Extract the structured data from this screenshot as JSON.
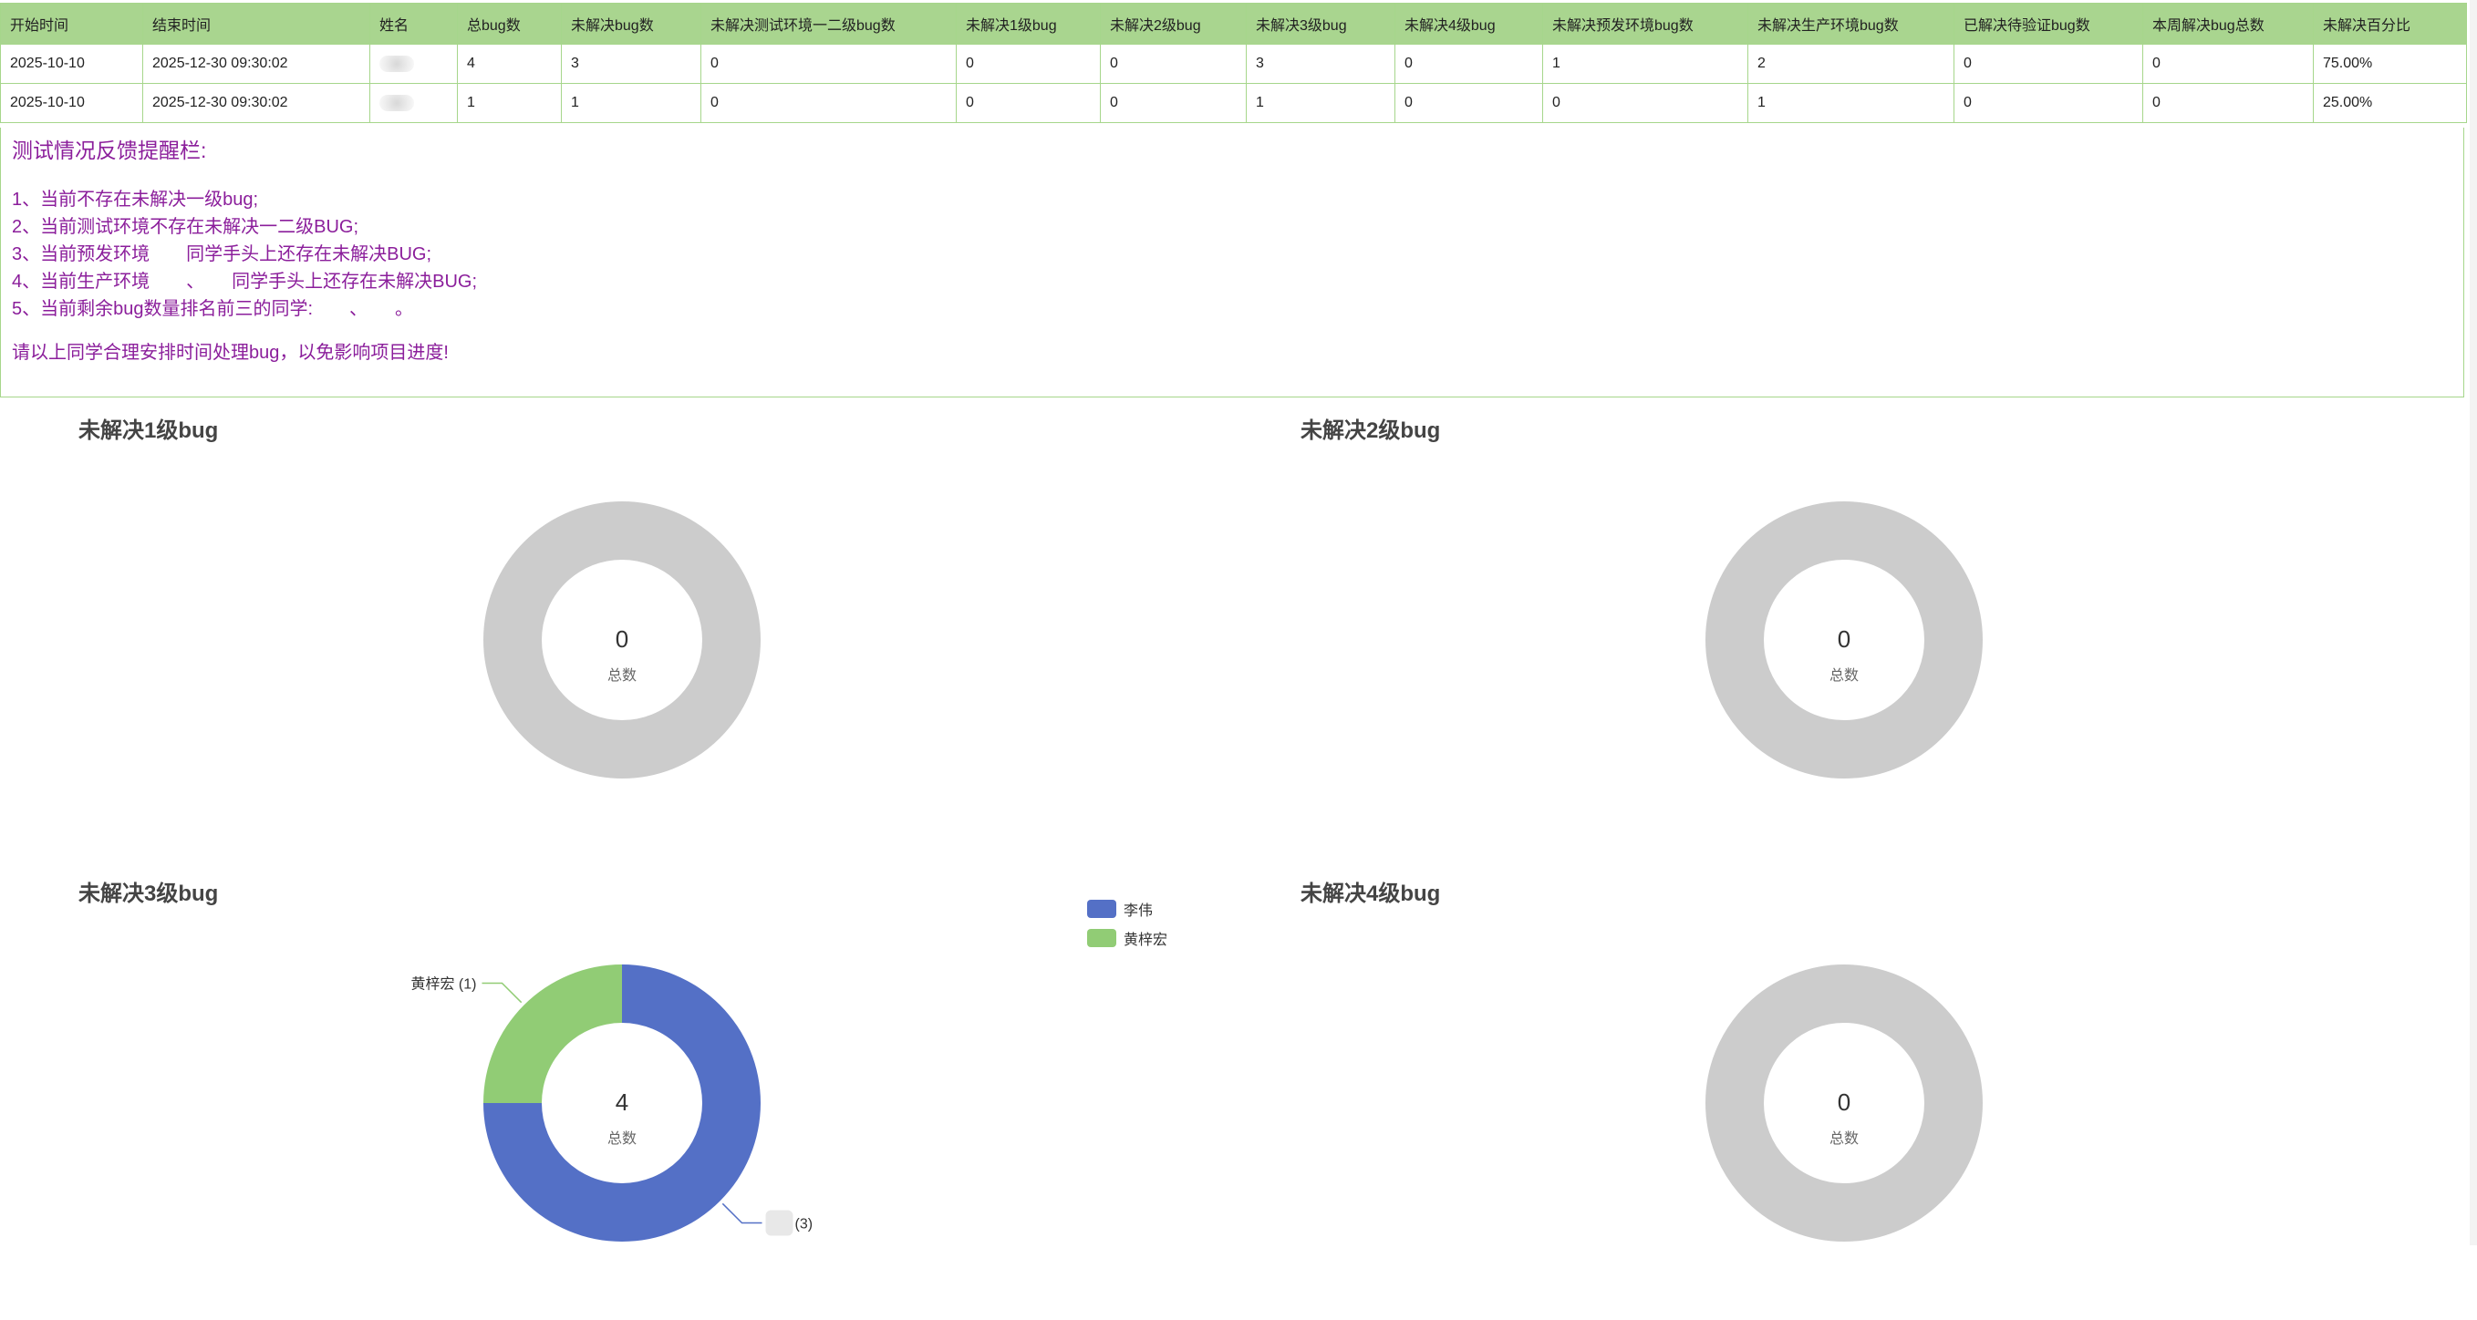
{
  "table": {
    "headers": [
      "开始时间",
      "结束时间",
      "姓名",
      "总bug数",
      "未解决bug数",
      "未解决测试环境一二级bug数",
      "未解决1级bug",
      "未解决2级bug",
      "未解决3级bug",
      "未解决4级bug",
      "未解决预发环境bug数",
      "未解决生产环境bug数",
      "已解决待验证bug数",
      "本周解决bug总数",
      "未解决百分比"
    ],
    "rows": [
      [
        "2025-10-10",
        "2025-12-30 09:30:02",
        "",
        "4",
        "3",
        "0",
        "0",
        "0",
        "3",
        "0",
        "1",
        "2",
        "0",
        "0",
        "75.00%"
      ],
      [
        "2025-10-10",
        "2025-12-30 09:30:02",
        "",
        "1",
        "1",
        "0",
        "0",
        "0",
        "1",
        "0",
        "0",
        "1",
        "0",
        "0",
        "25.00%"
      ]
    ]
  },
  "feedback": {
    "title": "测试情况反馈提醒栏:",
    "items": [
      "1、当前不存在未解决一级bug;",
      "2、当前测试环境不存在未解决一二级BUG;",
      "3、当前预发环境　　同学手头上还存在未解决BUG;",
      "4、当前生产环境　　、　　同学手头上还存在未解决BUG;",
      "5、当前剩余bug数量排名前三的同学:　　、　　。"
    ],
    "footer": "请以上同学合理安排时间处理bug，以免影响项目进度!"
  },
  "colors": {
    "header_bg": "#a9d58f",
    "border": "#a6d68b",
    "feedback_text": "#8b1e9b",
    "empty_ring": "#cccccc",
    "series_blue": "#5470c6",
    "series_green": "#91cc75"
  },
  "chart_data": [
    {
      "type": "pie",
      "title": "未解决1级bug",
      "center_value": "0",
      "center_label": "总数",
      "slices": []
    },
    {
      "type": "pie",
      "title": "未解决2级bug",
      "center_value": "0",
      "center_label": "总数",
      "slices": []
    },
    {
      "type": "pie",
      "title": "未解决3级bug",
      "center_value": "4",
      "center_label": "总数",
      "slices": [
        {
          "name": "李伟",
          "value": 3,
          "label": "(3)",
          "color": "#5470c6"
        },
        {
          "name": "黄梓宏",
          "value": 1,
          "label": "黄梓宏 (1)",
          "color": "#91cc75"
        }
      ],
      "legend": [
        "李伟",
        "黄梓宏"
      ]
    },
    {
      "type": "pie",
      "title": "未解决4级bug",
      "center_value": "0",
      "center_label": "总数",
      "slices": []
    }
  ]
}
